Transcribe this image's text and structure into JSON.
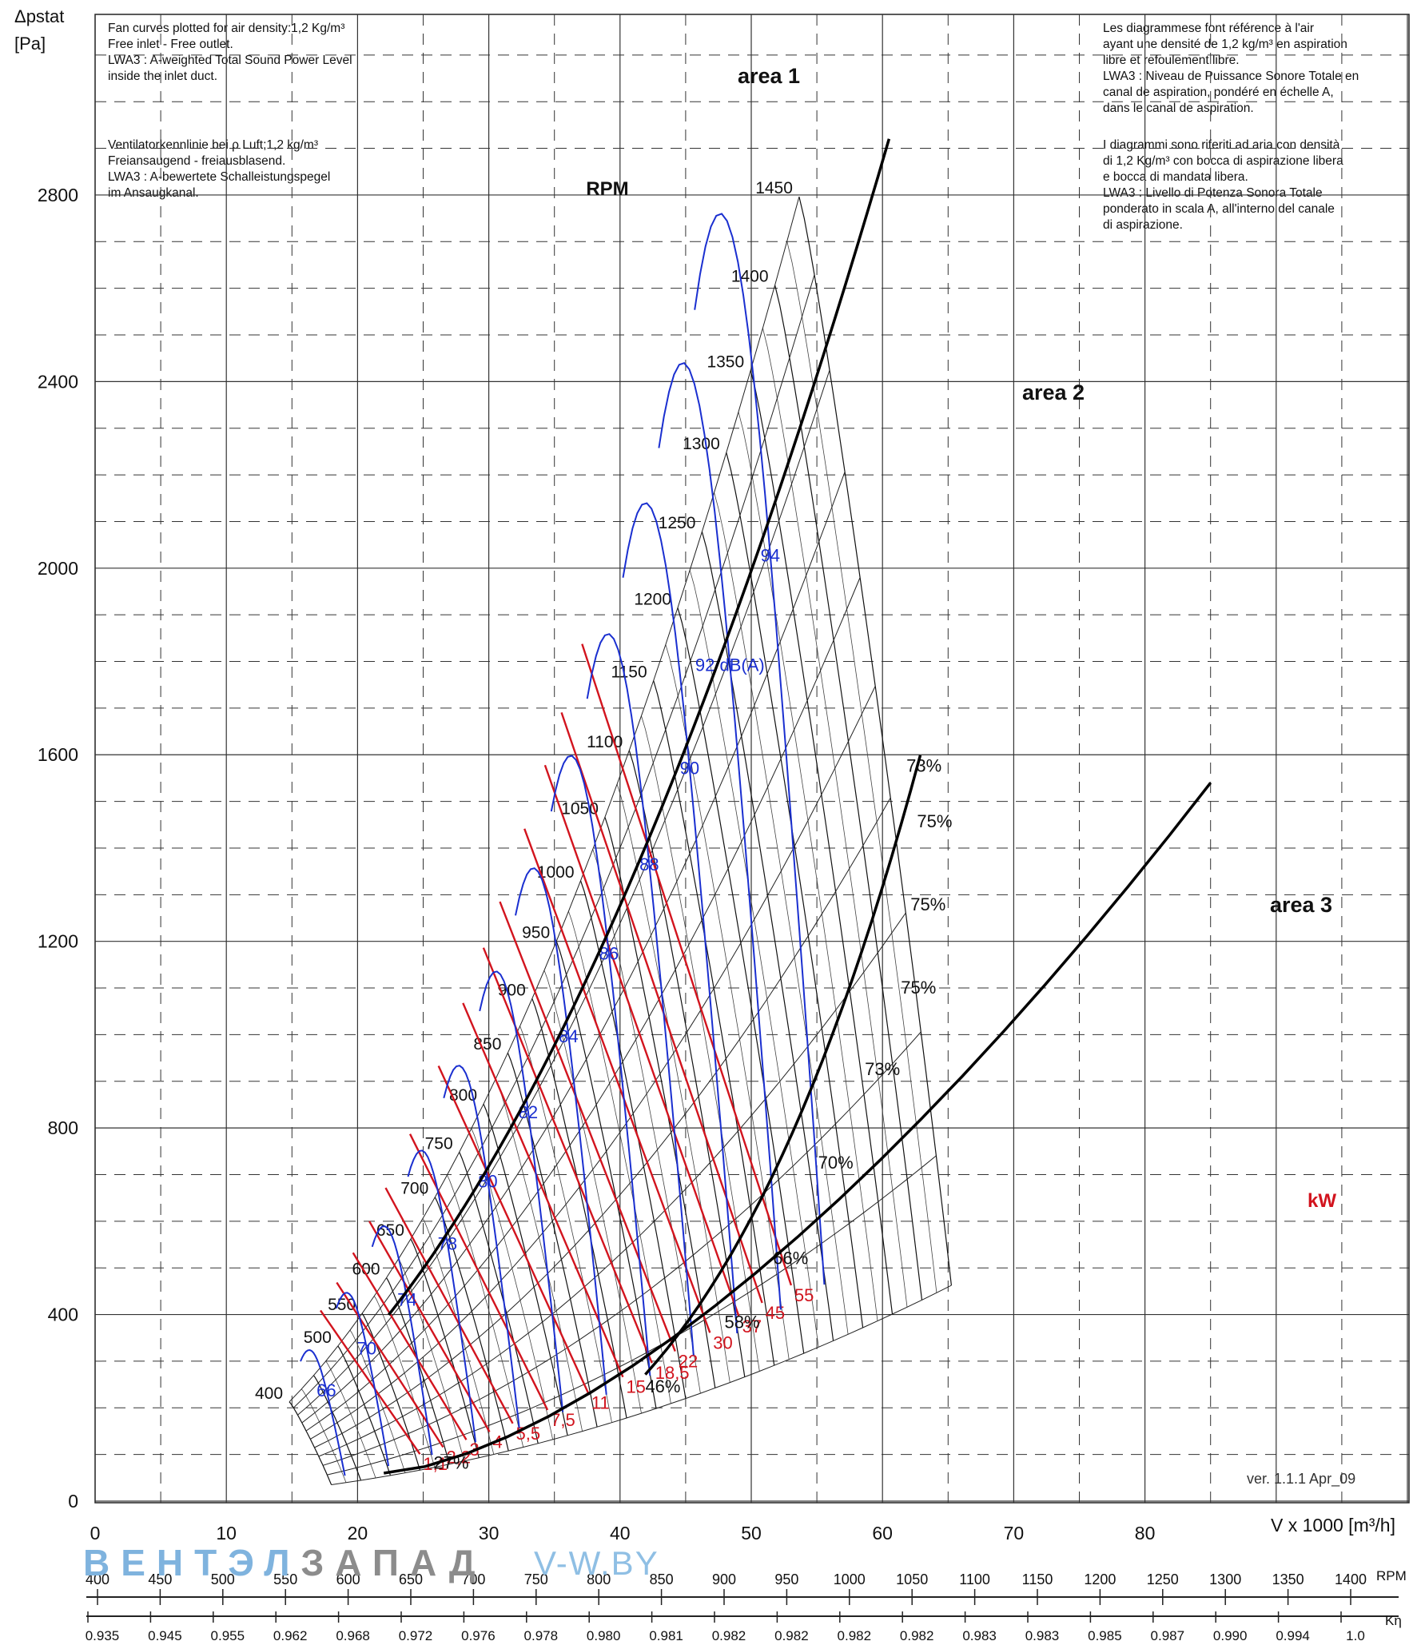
{
  "notes": {
    "en": "Fan curves plotted for air density:1,2 Kg/m³\nFree inlet - Free outlet.\nLWA3 : A-weighted Total Sound Power Level\ninside the inlet duct.",
    "de": "Ventilatorkennlinie bei ρ Luft;1,2 kg/m³\nFreiansaugend - freiausblasend.\nLWA3 : A-bewertete Schalleistungspegel\nim Ansaugkanal.",
    "fr": "Les diagrammese font référence à l'air\nayant une densité de 1,2 kg/m³ en aspiration\nlibre et refoulement libre.\nLWA3 : Niveau de Puissance Sonore Totale en\ncanal de aspiration, pondéré en échelle A,\ndans le canal de aspiration.",
    "it": "I diagrammi sono riferiti ad aria con densità\ndi 1,2 Kg/m³ con bocca di aspirazione libera\ne bocca di mandata libera.\nLWA3 : Livello di Potenza Sonora Totale\nponderato in scala A, all'interno del canale\ndi aspirazione."
  },
  "y_axis_label": "Δpstat\n[Pa]",
  "x_axis_label": "V x 1000 [m³/h]",
  "version": "ver. 1.1.1 Apr_09",
  "watermark": {
    "part1": "ВЕНТЭЛ",
    "part2": "ЗАПАД",
    "site": "V-W.BY"
  },
  "rpm_scale_title": "RPM",
  "k_scale_title": "Kη",
  "chart_data": {
    "type": "line",
    "xlabel": "V x 1000 [m³/h]",
    "ylabel": "Δpstat [Pa]",
    "xlim": [
      0,
      100
    ],
    "ylim": [
      0,
      3100
    ],
    "x_ticks": [
      "0",
      "10",
      "20",
      "30",
      "40",
      "50",
      "60",
      "70",
      "80"
    ],
    "y_ticks": [
      "0",
      "400",
      "800",
      "1200",
      "1600",
      "2000",
      "2400",
      "2800"
    ],
    "grid": true,
    "rpm_labels": [
      "400",
      "500",
      "550",
      "600",
      "650",
      "700",
      "750",
      "800",
      "850",
      "900",
      "950",
      "1000",
      "1050",
      "1100",
      "1150",
      "1200",
      "1250",
      "1300",
      "1350",
      "1400",
      "1450"
    ],
    "rpm_title": "RPM",
    "efficiency_labels": [
      "73%",
      "75%",
      "75%",
      "75%",
      "73%",
      "70%",
      "66%",
      "58%",
      "46%",
      "27%"
    ],
    "area_labels": [
      "area 1",
      "area 2",
      "area 3"
    ],
    "power_labels": [
      "1,1",
      "2,2",
      "3",
      "4",
      "5,5",
      "7,5",
      "11",
      "15",
      "18,5",
      "22",
      "30",
      "37",
      "45",
      "55"
    ],
    "power_unit": "kW",
    "sound_labels": [
      "66",
      "70",
      "74",
      "78",
      "80",
      "82",
      "84",
      "86",
      "88",
      "90",
      "92 dB(A)",
      "94"
    ],
    "rpm_scale": [
      "400",
      "450",
      "500",
      "550",
      "600",
      "650",
      "700",
      "750",
      "800",
      "850",
      "900",
      "950",
      "1000",
      "1050",
      "1100",
      "1150",
      "1200",
      "1250",
      "1300",
      "1350",
      "1400"
    ],
    "k_scale": [
      "0.935",
      "0.945",
      "0.955",
      "0.962",
      "0.968",
      "0.972",
      "0.976",
      "0.978",
      "0.980",
      "0.981",
      "0.982",
      "0.982",
      "0.982",
      "0.982",
      "0.983",
      "0.983",
      "0.985",
      "0.987",
      "0.990",
      "0.994",
      "1.0"
    ]
  }
}
